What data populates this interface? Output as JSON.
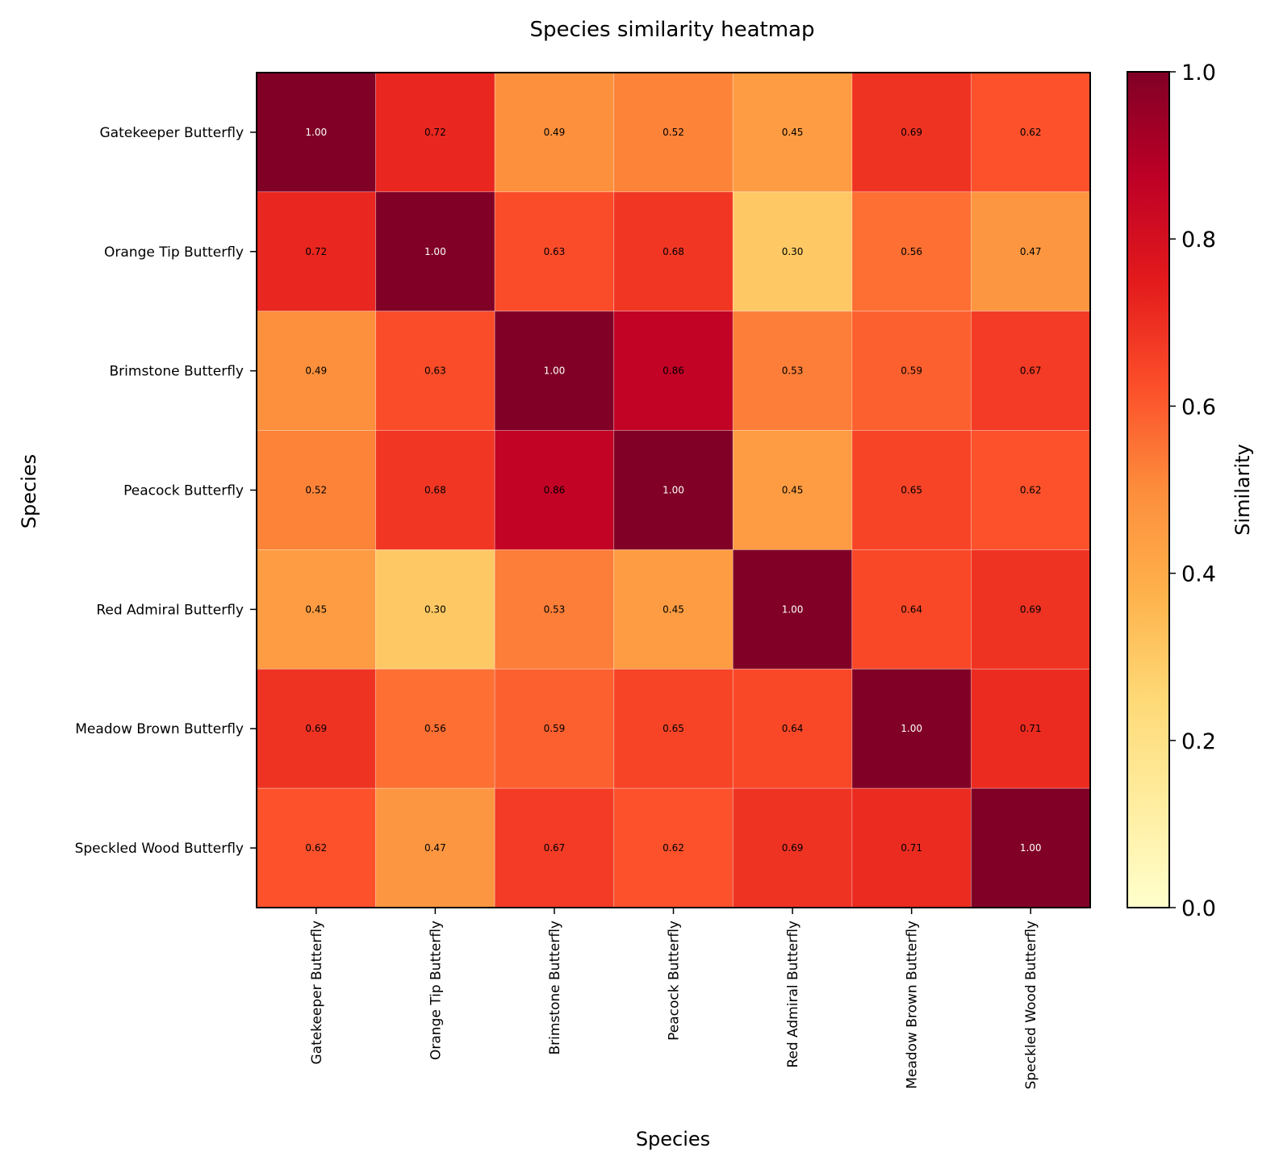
{
  "chart_data": {
    "type": "heatmap",
    "title": "Species similarity heatmap",
    "xlabel": "Species",
    "ylabel": "Species",
    "colorbar_label": "Similarity",
    "x_categories": [
      "Gatekeeper Butterfly",
      "Orange Tip Butterfly",
      "Brimstone Butterfly",
      "Peacock Butterfly",
      "Red Admiral Butterfly",
      "Meadow Brown Butterfly",
      "Speckled Wood Butterfly"
    ],
    "y_categories": [
      "Gatekeeper Butterfly",
      "Orange Tip Butterfly",
      "Brimstone Butterfly",
      "Peacock Butterfly",
      "Red Admiral Butterfly",
      "Meadow Brown Butterfly",
      "Speckled Wood Butterfly"
    ],
    "values": [
      [
        1.0,
        0.72,
        0.49,
        0.52,
        0.45,
        0.69,
        0.62
      ],
      [
        0.72,
        1.0,
        0.63,
        0.68,
        0.3,
        0.56,
        0.47
      ],
      [
        0.49,
        0.63,
        1.0,
        0.86,
        0.53,
        0.59,
        0.67
      ],
      [
        0.52,
        0.68,
        0.86,
        1.0,
        0.45,
        0.65,
        0.62
      ],
      [
        0.45,
        0.3,
        0.53,
        0.45,
        1.0,
        0.64,
        0.69
      ],
      [
        0.69,
        0.56,
        0.59,
        0.65,
        0.64,
        1.0,
        0.71
      ],
      [
        0.62,
        0.47,
        0.67,
        0.62,
        0.69,
        0.71,
        1.0
      ]
    ],
    "value_format": "2 decimals",
    "colormap": "YlOrRd",
    "color_range": [
      0.0,
      1.0
    ],
    "colorbar_ticks": [
      "0.0",
      "0.2",
      "0.4",
      "0.6",
      "0.8",
      "1.0"
    ],
    "grid": false,
    "colorbar_position": "right"
  }
}
